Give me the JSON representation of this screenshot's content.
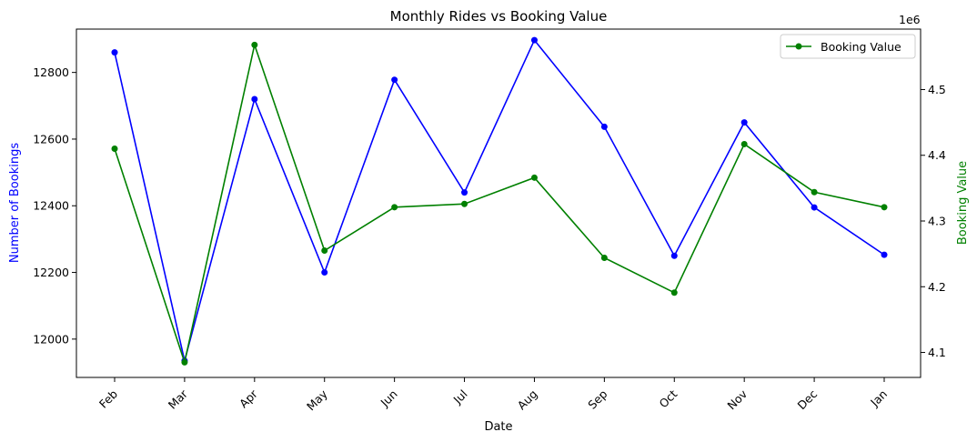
{
  "chart_data": {
    "type": "line",
    "title": "Monthly Rides vs Booking Value",
    "xlabel": "Date",
    "categories": [
      "Feb",
      "Mar",
      "Apr",
      "May",
      "Jun",
      "Jul",
      "Aug",
      "Sep",
      "Oct",
      "Nov",
      "Dec",
      "Jan"
    ],
    "series": [
      {
        "axis": "left",
        "color": "#0000ff",
        "marker": "circle",
        "values": [
          12860,
          11935,
          12720,
          12200,
          12778,
          12440,
          12897,
          12637,
          12250,
          12650,
          12395,
          12253
        ]
      },
      {
        "name": "Booking Value",
        "axis": "right",
        "color": "#008000",
        "marker": "circle",
        "values": [
          4410000,
          4085000,
          4568000,
          4255000,
          4321000,
          4326000,
          4366000,
          4244000,
          4191000,
          4417000,
          4344000,
          4321000
        ]
      }
    ],
    "left_axis": {
      "label": "Number of Bookings",
      "label_color": "#0000ff",
      "ylim": [
        11885,
        12930
      ],
      "ticks": [
        12000,
        12200,
        12400,
        12600,
        12800
      ]
    },
    "right_axis": {
      "label": "Booking Value",
      "label_color": "#008000",
      "offset_text": "1e6",
      "ylim": [
        4062000,
        4592000
      ],
      "ticks": [
        4.1,
        4.2,
        4.3,
        4.4,
        4.5
      ],
      "tick_labels": [
        "4.1",
        "4.2",
        "4.3",
        "4.4",
        "4.5"
      ]
    },
    "legend": {
      "position": "top-right",
      "entries": [
        "Booking Value"
      ]
    },
    "grid": false
  }
}
